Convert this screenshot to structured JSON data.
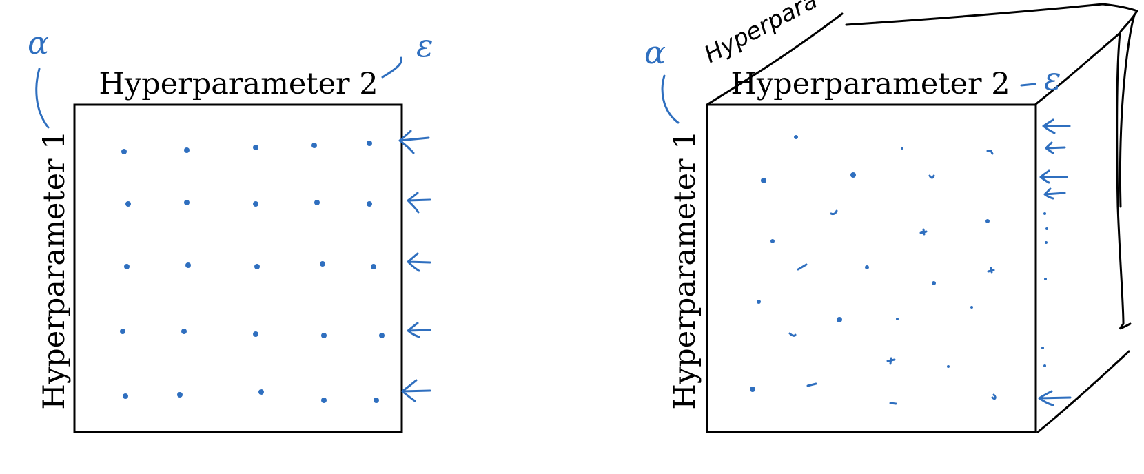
{
  "colors": {
    "ink_blue": "#2f6fbf",
    "ink_black": "#000000",
    "background": "#ffffff"
  },
  "left_panel": {
    "top_label": "Hyperparameter 2",
    "side_label": "Hyperparameter 1",
    "annotation_alpha": "α",
    "annotation_epsilon": "ε",
    "points": [
      [
        1,
        1
      ],
      [
        2,
        1
      ],
      [
        3,
        1
      ],
      [
        4,
        1
      ],
      [
        5,
        1
      ],
      [
        1,
        2
      ],
      [
        2,
        2
      ],
      [
        3,
        2
      ],
      [
        4,
        2
      ],
      [
        5,
        2
      ],
      [
        1,
        3
      ],
      [
        2,
        3
      ],
      [
        3,
        3
      ],
      [
        4,
        3
      ],
      [
        5,
        3
      ],
      [
        1,
        4
      ],
      [
        2,
        4
      ],
      [
        3,
        4
      ],
      [
        4,
        4
      ],
      [
        5,
        4
      ],
      [
        1,
        5
      ],
      [
        2,
        5
      ],
      [
        3,
        5
      ],
      [
        4,
        5
      ],
      [
        5,
        5
      ]
    ]
  },
  "right_panel": {
    "top_label": "Hyperparameter 2",
    "side_label": "Hyperparameter 1",
    "depth_label": "Hyperpara",
    "annotation_alpha": "α",
    "annotation_epsilon": "ε"
  }
}
